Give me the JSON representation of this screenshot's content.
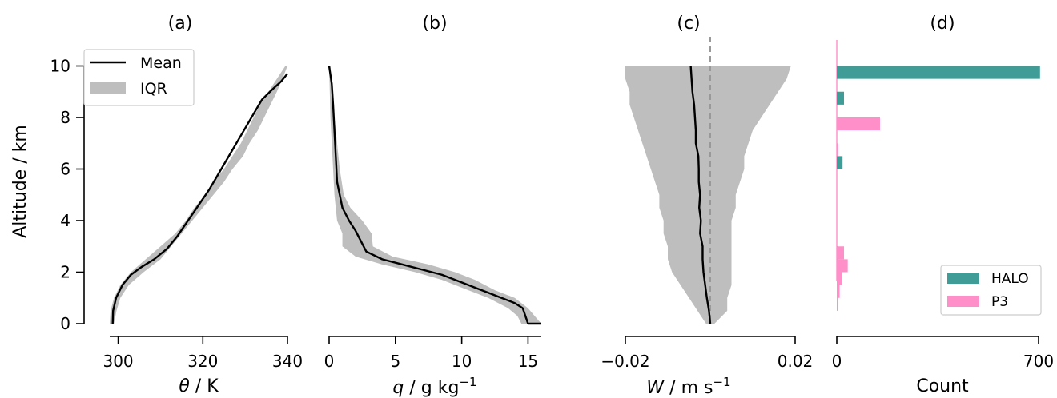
{
  "chart_data": [
    {
      "type": "area",
      "panel": "(a)",
      "xlabel_symbol": "θ",
      "xlabel_unit": " / K",
      "ylabel": "Altitude / km",
      "xlim": [
        298,
        340
      ],
      "ylim": [
        -0.5,
        11
      ],
      "xticks": [
        300,
        320,
        340
      ],
      "yticks": [
        0,
        2,
        4,
        6,
        8,
        10
      ],
      "legend": {
        "position": "upper-left",
        "entries": [
          "Mean",
          "IQR"
        ]
      },
      "series": [
        {
          "name": "Mean",
          "x": [
            298.7,
            298.8,
            299.5,
            301,
            303,
            305.5,
            308.5,
            311.5,
            314,
            316.5,
            319,
            321.5,
            324,
            326.5,
            329,
            331.5,
            334,
            336.5,
            338.5,
            340
          ],
          "y": [
            0,
            0.5,
            1,
            1.5,
            1.9,
            2.2,
            2.5,
            2.9,
            3.4,
            4,
            4.6,
            5.2,
            5.9,
            6.6,
            7.3,
            8,
            8.7,
            9.1,
            9.4,
            9.7
          ]
        },
        {
          "name": "IQR",
          "y": [
            0,
            0.5,
            1,
            1.5,
            2,
            2.5,
            3,
            3.5,
            4,
            4.5,
            5,
            5.5,
            6,
            6.5,
            7,
            7.5,
            8,
            8.5,
            9,
            9.5,
            10
          ],
          "x_low": [
            298,
            298.2,
            299,
            300.5,
            303,
            306.5,
            310,
            313.5,
            316,
            318,
            320.5,
            322.5,
            325,
            327,
            329,
            330.5,
            332,
            333.5,
            335.5,
            337.5,
            339.5
          ],
          "x_high": [
            299,
            299.6,
            300.5,
            302.5,
            306,
            310,
            312.5,
            315,
            317.5,
            320,
            322.5,
            325,
            327,
            329.5,
            331,
            333,
            334.5,
            336,
            337.5,
            338.8,
            340
          ]
        }
      ]
    },
    {
      "type": "area",
      "panel": "(b)",
      "xlabel_symbol": "q",
      "xlabel_unit": " / g kg",
      "xlabel_sup": "−1",
      "xlim": [
        0,
        16
      ],
      "ylim": [
        -0.5,
        11
      ],
      "xticks": [
        0,
        5,
        10,
        15
      ],
      "series": [
        {
          "name": "Mean",
          "x": [
            16,
            15,
            14.8,
            14.6,
            14,
            13,
            12,
            11,
            10,
            8.5,
            7,
            5.5,
            4,
            2.8,
            2.4,
            2,
            1.5,
            1,
            0.8,
            0.6,
            0.5,
            0.4,
            0.3,
            0.2,
            0
          ],
          "y": [
            0,
            0,
            0.3,
            0.6,
            0.8,
            1,
            1.2,
            1.4,
            1.6,
            1.9,
            2.1,
            2.3,
            2.5,
            2.8,
            3.2,
            3.6,
            4,
            4.5,
            5,
            5.5,
            6.5,
            7.5,
            8.5,
            9.3,
            10
          ]
        },
        {
          "name": "IQR",
          "y": [
            0,
            0.3,
            0.6,
            1,
            1.3,
            1.7,
            2,
            2.3,
            2.6,
            3,
            3.5,
            4,
            4.5,
            5,
            6,
            7,
            8,
            9,
            10
          ],
          "x_low": [
            14.5,
            14.2,
            13.5,
            12,
            10.5,
            8.5,
            6.5,
            4,
            2,
            1,
            1,
            0.6,
            0.5,
            0.4,
            0.3,
            0.2,
            0.1,
            0.05,
            0
          ],
          "x_high": [
            16,
            15.5,
            15,
            14,
            12.5,
            11,
            9.5,
            7.5,
            4.8,
            3.3,
            3.2,
            2.5,
            1.6,
            1.1,
            0.8,
            0.6,
            0.4,
            0.2,
            0.1
          ]
        }
      ]
    },
    {
      "type": "area",
      "panel": "(c)",
      "xlabel_symbol": "W",
      "xlabel_unit": " / m s",
      "xlabel_sup": "−1",
      "xlim": [
        -0.02,
        0.02
      ],
      "xtick_labels": [
        "−0.02",
        "0.02"
      ],
      "xticks": [
        -0.02,
        0.02
      ],
      "ylim": [
        -0.5,
        11
      ],
      "reference_line_x": 0,
      "series": [
        {
          "name": "Mean",
          "x": [
            0,
            -0.0003,
            -0.0008,
            -0.0012,
            -0.0016,
            -0.0018,
            -0.0018,
            -0.0024,
            -0.0022,
            -0.0026,
            -0.0024,
            -0.0027,
            -0.0027,
            -0.0028,
            -0.0034,
            -0.0034,
            -0.0036,
            -0.0038,
            -0.0042,
            -0.0046
          ],
          "y": [
            0,
            0.5,
            1,
            1.5,
            2,
            2.5,
            3,
            3.5,
            4,
            4.5,
            5,
            5.5,
            6,
            6.5,
            7,
            7.5,
            8,
            8.5,
            9,
            10
          ]
        },
        {
          "name": "IQR",
          "y": [
            0,
            0.5,
            1,
            1.5,
            2,
            2.5,
            3,
            3.5,
            4,
            4.5,
            5,
            5.5,
            6,
            6.5,
            7,
            7.5,
            8,
            8.5,
            9,
            9.5,
            10
          ],
          "x_low": [
            -0.001,
            -0.003,
            -0.005,
            -0.007,
            -0.009,
            -0.01,
            -0.01,
            -0.011,
            -0.011,
            -0.012,
            -0.012,
            -0.013,
            -0.014,
            -0.015,
            -0.016,
            -0.017,
            -0.018,
            -0.019,
            -0.019,
            -0.02,
            -0.02
          ],
          "x_high": [
            0.001,
            0.004,
            0.004,
            0.005,
            0.005,
            0.005,
            0.005,
            0.005,
            0.005,
            0.006,
            0.006,
            0.007,
            0.008,
            0.008,
            0.009,
            0.01,
            0.012,
            0.014,
            0.016,
            0.018,
            0.019
          ]
        }
      ]
    },
    {
      "type": "bar",
      "panel": "(d)",
      "orientation": "horizontal",
      "xlabel": "Count",
      "xlim": [
        0,
        700
      ],
      "xticks": [
        0,
        700
      ],
      "ylim": [
        -0.5,
        11
      ],
      "bar_height_km": 0.5,
      "legend": {
        "position": "lower-right",
        "entries": [
          "HALO",
          "P3"
        ]
      },
      "series": [
        {
          "name": "HALO",
          "color": "#3f9c96",
          "altitude": [
            9.75,
            8.75,
            6.25,
            2.75,
            1.25
          ],
          "values": [
            705,
            25,
            20,
            2,
            2
          ]
        },
        {
          "name": "P3",
          "color": "#ff8fc8",
          "altitude": [
            7.75,
            6.75,
            2.75,
            2.25,
            1.75,
            1.25,
            0.75
          ],
          "values": [
            150,
            5,
            25,
            38,
            18,
            10,
            3
          ]
        }
      ]
    }
  ],
  "colors": {
    "iqr_fill": "#bebebe",
    "mean_line": "#000000",
    "reference_line": "#999999"
  }
}
